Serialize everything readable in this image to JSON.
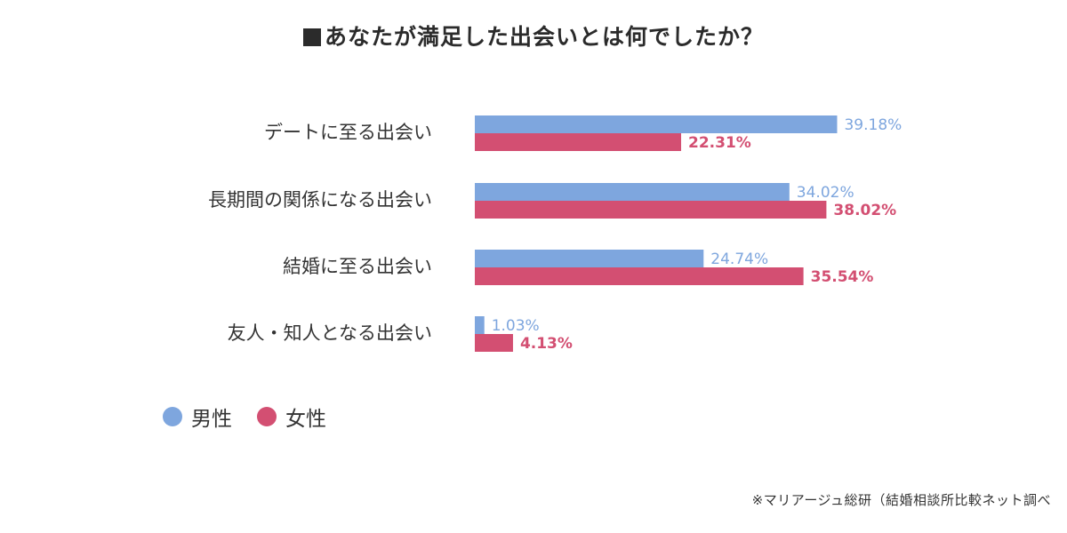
{
  "title": "あなたが満足した出会いとは何でしたか？",
  "source": "※マリアージュ総研（結婚相談所比較ネット調べ",
  "colors": {
    "male": "#7ea6de",
    "female": "#d34f72"
  },
  "legend": [
    {
      "label": "男性",
      "color": "#7ea6de"
    },
    {
      "label": "女性",
      "color": "#d34f72"
    }
  ],
  "chart_data": {
    "type": "bar",
    "orientation": "horizontal",
    "title": "あなたが満足した出会いとは何でしたか？",
    "categories": [
      "デートに至る出会い",
      "長期間の関係になる出会い",
      "結婚に至る出会い",
      "友人・知人となる出会い"
    ],
    "series": [
      {
        "name": "男性",
        "values": [
          39.18,
          34.02,
          24.74,
          1.03
        ]
      },
      {
        "name": "女性",
        "values": [
          22.31,
          38.02,
          35.54,
          4.13
        ]
      }
    ],
    "value_labels": {
      "男性": [
        "39.18%",
        "34.02%",
        "24.74%",
        "1.03%"
      ],
      "女性": [
        "22.31%",
        "38.02%",
        "35.54%",
        "4.13%"
      ]
    },
    "xlim": [
      0,
      45
    ],
    "grid": false,
    "legend_position": "bottom-left"
  }
}
